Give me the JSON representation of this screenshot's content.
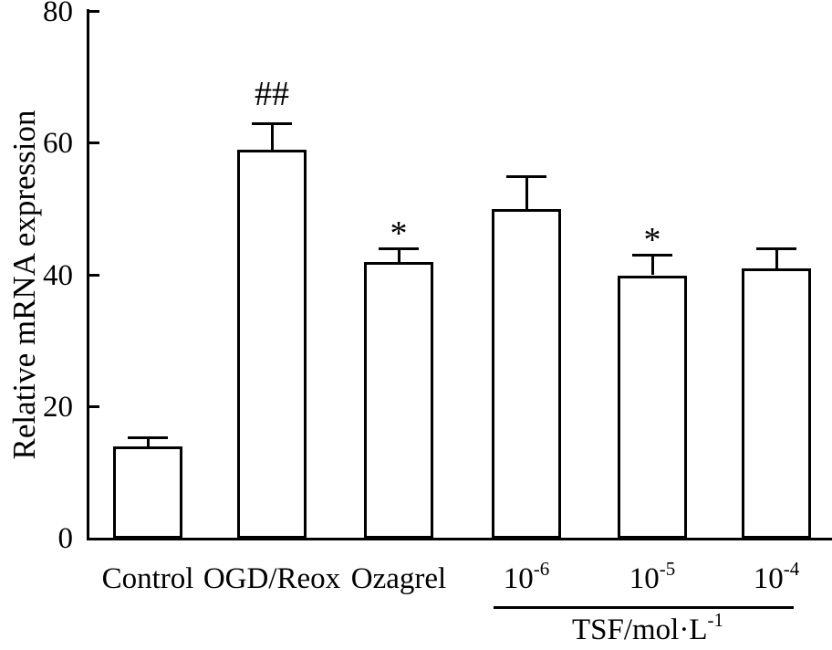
{
  "chart_data": {
    "type": "bar",
    "title": "",
    "xlabel": "",
    "ylabel": "Relative mRNA expression",
    "ylim": [
      0,
      80
    ],
    "yticks": [
      "0",
      "20",
      "40",
      "60",
      "80"
    ],
    "grid": false,
    "legend": false,
    "categories": [
      "Control",
      "OGD/Reox",
      "Ozagrel",
      "10^-6",
      "10^-5",
      "10^-4"
    ],
    "values": [
      14,
      59,
      42,
      50,
      40,
      41
    ],
    "errors": [
      1.3,
      4,
      2,
      5,
      3,
      3
    ],
    "bars": [
      {
        "label": "Control",
        "label_sup": "",
        "value": 14,
        "error": 1.3,
        "annotation": ""
      },
      {
        "label": "OGD/Reox",
        "label_sup": "",
        "value": 59,
        "error": 4,
        "annotation": "##"
      },
      {
        "label": "Ozagrel",
        "label_sup": "",
        "value": 42,
        "error": 2,
        "annotation": "*"
      },
      {
        "label": "10",
        "label_sup": "-6",
        "value": 50,
        "error": 5,
        "annotation": ""
      },
      {
        "label": "10",
        "label_sup": "-5",
        "value": 40,
        "error": 3,
        "annotation": "*"
      },
      {
        "label": "10",
        "label_sup": "-4",
        "value": 41,
        "error": 3,
        "annotation": ""
      }
    ],
    "group": {
      "label": "TSF/mol·L",
      "label_sup": "-1",
      "member_start_index": 3,
      "member_end_index": 5
    },
    "colors": {
      "line_color": "#000000",
      "bar_fill": "#ffffff",
      "background": "#ffffff"
    }
  }
}
